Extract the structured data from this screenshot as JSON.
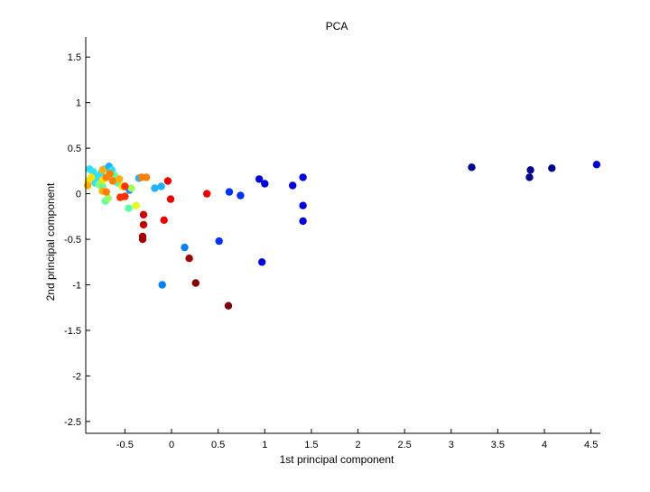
{
  "chart_data": {
    "type": "scatter",
    "title": "PCA",
    "xlabel": "1st principal component",
    "ylabel": "2nd principal component",
    "xlim": [
      -0.92,
      4.6
    ],
    "ylim": [
      -2.63,
      1.72
    ],
    "xticks": [
      -0.5,
      0,
      0.5,
      1,
      1.5,
      2,
      2.5,
      3,
      3.5,
      4,
      4.5
    ],
    "xtick_labels": [
      "-0.5",
      "0",
      "0.5",
      "1",
      "1.5",
      "2",
      "2.5",
      "3",
      "3.5",
      "4",
      "4.5"
    ],
    "yticks": [
      -2.5,
      -2,
      -1.5,
      -1,
      -0.5,
      0,
      0.5,
      1,
      1.5
    ],
    "ytick_labels": [
      "-2.5",
      "-2",
      "-1.5",
      "-1",
      "-0.5",
      "0",
      "0.5",
      "1",
      "1.5"
    ],
    "grid": false,
    "colormap": "jet",
    "points": [
      {
        "x": 3.22,
        "y": 0.29,
        "color": "#00008f"
      },
      {
        "x": 3.85,
        "y": 0.26,
        "color": "#00008f"
      },
      {
        "x": 3.84,
        "y": 0.18,
        "color": "#00008f"
      },
      {
        "x": 4.08,
        "y": 0.28,
        "color": "#00008f"
      },
      {
        "x": 4.56,
        "y": 0.32,
        "color": "#0000cf"
      },
      {
        "x": 0.94,
        "y": 0.16,
        "color": "#0000dd"
      },
      {
        "x": 1.0,
        "y": 0.11,
        "color": "#0000dd"
      },
      {
        "x": 1.3,
        "y": 0.09,
        "color": "#0000dd"
      },
      {
        "x": 1.41,
        "y": 0.18,
        "color": "#0000dd"
      },
      {
        "x": 1.41,
        "y": -0.13,
        "color": "#0000dd"
      },
      {
        "x": 1.41,
        "y": -0.3,
        "color": "#0000dd"
      },
      {
        "x": 0.97,
        "y": -0.75,
        "color": "#0000dd"
      },
      {
        "x": 0.62,
        "y": 0.02,
        "color": "#0030ff"
      },
      {
        "x": 0.74,
        "y": -0.02,
        "color": "#0030ff"
      },
      {
        "x": 0.51,
        "y": -0.52,
        "color": "#0030ff"
      },
      {
        "x": 0.14,
        "y": -0.59,
        "color": "#0080ff"
      },
      {
        "x": -0.1,
        "y": -1.0,
        "color": "#0080ff"
      },
      {
        "x": -0.18,
        "y": 0.06,
        "color": "#20b0ff"
      },
      {
        "x": -0.11,
        "y": 0.08,
        "color": "#20b0ff"
      },
      {
        "x": -0.45,
        "y": 0.04,
        "color": "#0090ff"
      },
      {
        "x": -0.35,
        "y": 0.17,
        "color": "#20b0ff"
      },
      {
        "x": -0.88,
        "y": 0.27,
        "color": "#30e0ff"
      },
      {
        "x": -0.84,
        "y": 0.24,
        "color": "#30e0ff"
      },
      {
        "x": -0.8,
        "y": 0.18,
        "color": "#30e0ff"
      },
      {
        "x": -0.76,
        "y": 0.22,
        "color": "#30e0ff"
      },
      {
        "x": -0.72,
        "y": 0.27,
        "color": "#30e0ff"
      },
      {
        "x": -0.67,
        "y": 0.3,
        "color": "#20b0ff"
      },
      {
        "x": -0.64,
        "y": 0.26,
        "color": "#30e0ff"
      },
      {
        "x": -0.61,
        "y": 0.2,
        "color": "#60ffa0"
      },
      {
        "x": -0.58,
        "y": 0.12,
        "color": "#40ffc0"
      },
      {
        "x": -0.82,
        "y": 0.12,
        "color": "#30e0ff"
      },
      {
        "x": -0.78,
        "y": 0.1,
        "color": "#80ff80"
      },
      {
        "x": -0.74,
        "y": 0.08,
        "color": "#60ffa0"
      },
      {
        "x": -0.71,
        "y": -0.08,
        "color": "#60ffa0"
      },
      {
        "x": -0.68,
        "y": -0.05,
        "color": "#a0ff60"
      },
      {
        "x": -0.46,
        "y": -0.16,
        "color": "#60ffa0"
      },
      {
        "x": -0.43,
        "y": 0.06,
        "color": "#a0ff60"
      },
      {
        "x": -0.38,
        "y": -0.13,
        "color": "#e0ff20"
      },
      {
        "x": -0.89,
        "y": 0.14,
        "color": "#ffe000"
      },
      {
        "x": -0.86,
        "y": 0.18,
        "color": "#ffe000"
      },
      {
        "x": -0.9,
        "y": 0.09,
        "color": "#ffb000"
      },
      {
        "x": -0.74,
        "y": 0.15,
        "color": "#ffe000"
      },
      {
        "x": -0.74,
        "y": 0.03,
        "color": "#ffb000"
      },
      {
        "x": -0.7,
        "y": 0.02,
        "color": "#ff8000"
      },
      {
        "x": -0.74,
        "y": 0.26,
        "color": "#ffb000"
      },
      {
        "x": -0.7,
        "y": 0.18,
        "color": "#ff8000"
      },
      {
        "x": -0.66,
        "y": 0.22,
        "color": "#ff8000"
      },
      {
        "x": -0.63,
        "y": 0.14,
        "color": "#ff8000"
      },
      {
        "x": -0.56,
        "y": 0.16,
        "color": "#ffb000"
      },
      {
        "x": -0.53,
        "y": 0.08,
        "color": "#ffe000"
      },
      {
        "x": -0.32,
        "y": 0.18,
        "color": "#ff8000"
      },
      {
        "x": -0.27,
        "y": 0.18,
        "color": "#ff8000"
      },
      {
        "x": -0.55,
        "y": -0.04,
        "color": "#ff3000"
      },
      {
        "x": -0.5,
        "y": -0.03,
        "color": "#ff3000"
      },
      {
        "x": -0.5,
        "y": 0.08,
        "color": "#ff3000"
      },
      {
        "x": -0.04,
        "y": 0.14,
        "color": "#ef0000"
      },
      {
        "x": -0.01,
        "y": -0.06,
        "color": "#ef0000"
      },
      {
        "x": -0.08,
        "y": -0.29,
        "color": "#ef0000"
      },
      {
        "x": -0.3,
        "y": -0.23,
        "color": "#cf0000"
      },
      {
        "x": 0.38,
        "y": 0.0,
        "color": "#ef0000"
      },
      {
        "x": -0.3,
        "y": -0.34,
        "color": "#bf0000"
      },
      {
        "x": -0.31,
        "y": -0.47,
        "color": "#9f0000"
      },
      {
        "x": -0.31,
        "y": -0.5,
        "color": "#9f0000"
      },
      {
        "x": 0.19,
        "y": -0.71,
        "color": "#9f0000"
      },
      {
        "x": 0.26,
        "y": -0.98,
        "color": "#7f0000"
      },
      {
        "x": 0.61,
        "y": -1.23,
        "color": "#7f0000"
      }
    ]
  }
}
